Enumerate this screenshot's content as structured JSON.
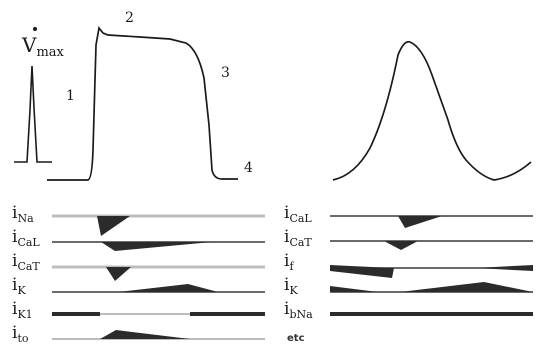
{
  "ventricular": {
    "vmax_label": {
      "symbol": "V",
      "sub": "max"
    },
    "phases": [
      "1",
      "2",
      "3",
      "4"
    ],
    "currents": [
      {
        "name": "i",
        "sub": "Na"
      },
      {
        "name": "i",
        "sub": "CaL"
      },
      {
        "name": "i",
        "sub": "CaT"
      },
      {
        "name": "i",
        "sub": "K"
      },
      {
        "name": "i",
        "sub": "K1"
      },
      {
        "name": "i",
        "sub": "to"
      }
    ]
  },
  "pacemaker": {
    "currents": [
      {
        "name": "i",
        "sub": "CaL"
      },
      {
        "name": "i",
        "sub": "CaT"
      },
      {
        "name": "i",
        "sub": "f"
      },
      {
        "name": "i",
        "sub": "K"
      },
      {
        "name": "i",
        "sub": "bNa"
      }
    ],
    "footer": "etc"
  },
  "colors": {
    "trace": "#1a1a1a",
    "grey_line": "#bdbdbd",
    "fill": "#2b2b2b"
  }
}
